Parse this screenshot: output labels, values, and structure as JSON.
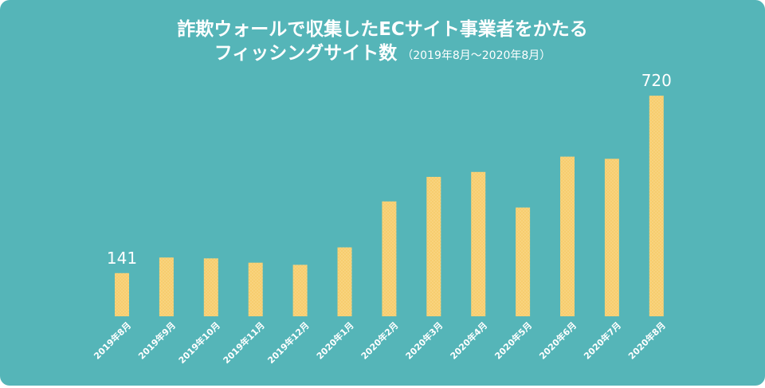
{
  "title": {
    "line1": "詐欺ウォールで収集したECサイト事業者をかたる",
    "line2_main": "フィッシングサイト数",
    "line2_sub": "（2019年8月～2020年8月）"
  },
  "colors": {
    "background": "#55b5b8",
    "bar": "#f7cd6e",
    "text": "#ffffff"
  },
  "chart_data": {
    "type": "bar",
    "categories": [
      "2019年8月",
      "2019年9月",
      "2019年10月",
      "2019年11月",
      "2019年12月",
      "2020年1月",
      "2020年2月",
      "2020年3月",
      "2020年4月",
      "2020年5月",
      "2020年6月",
      "2020年7月",
      "2020年8月"
    ],
    "values": [
      141,
      192,
      189,
      175,
      168,
      225,
      375,
      455,
      471,
      355,
      521,
      514,
      720
    ],
    "data_labels": [
      {
        "index": 0,
        "text": "141"
      },
      {
        "index": 12,
        "text": "720"
      }
    ],
    "ylim": [
      0,
      780
    ],
    "grid": false,
    "legend": "none"
  }
}
